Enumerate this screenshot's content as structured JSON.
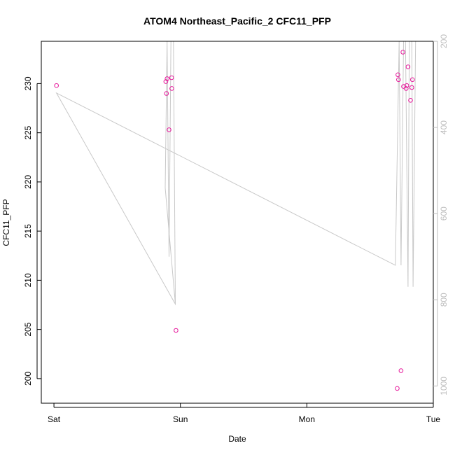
{
  "chart_data": {
    "type": "scatter",
    "title": "ATOM4 Northeast_Pacific_2 CFC11_PFP",
    "xlabel": "Date",
    "ylabel": "CFC11_PFP",
    "x_ticks": [
      "Sat",
      "Sun",
      "Mon",
      "Tue"
    ],
    "x_unit": "days (0 = Sat 00:00)",
    "xlim": [
      -0.1,
      3.0
    ],
    "ylim": [
      197.5,
      234.3
    ],
    "y_ticks": [
      200,
      205,
      210,
      215,
      220,
      225,
      230
    ],
    "y2_ticks": [
      200,
      400,
      600,
      800,
      1000
    ],
    "y2lim": [
      1040,
      200
    ],
    "y2_reversed": true,
    "grid": false,
    "legend": "none",
    "colors": {
      "points": "#e6199b",
      "altitude_line": "#c8c8c8",
      "axis": "#000000",
      "right_axis": "#bdbdbd"
    },
    "series": [
      {
        "kind": "points",
        "axis": "left",
        "points": [
          [
            0.02,
            229.8
          ],
          [
            0.885,
            230.2
          ],
          [
            0.89,
            229.0
          ],
          [
            0.895,
            230.5
          ],
          [
            0.91,
            225.3
          ],
          [
            0.93,
            230.6
          ],
          [
            0.932,
            229.5
          ],
          [
            0.965,
            204.9
          ],
          [
            2.715,
            199.0
          ],
          [
            2.72,
            230.9
          ],
          [
            2.725,
            230.4
          ],
          [
            2.745,
            200.8
          ],
          [
            2.76,
            233.2
          ],
          [
            2.765,
            229.7
          ],
          [
            2.785,
            229.5
          ],
          [
            2.79,
            229.8
          ],
          [
            2.8,
            231.7
          ],
          [
            2.82,
            228.3
          ],
          [
            2.83,
            229.6
          ],
          [
            2.835,
            230.4
          ]
        ]
      },
      {
        "kind": "line",
        "axis": "right",
        "points": [
          [
            0.02,
            320
          ],
          [
            0.96,
            810
          ],
          [
            0.88,
            540
          ],
          [
            0.895,
            200
          ],
          [
            0.91,
            700
          ],
          [
            0.925,
            200
          ],
          [
            0.945,
            200
          ],
          [
            0.96,
            810
          ],
          [
            0.02,
            320
          ],
          [
            2.7,
            720
          ],
          [
            2.73,
            200
          ],
          [
            2.745,
            720
          ],
          [
            2.765,
            200
          ],
          [
            2.78,
            200
          ],
          [
            2.8,
            770
          ],
          [
            2.81,
            200
          ],
          [
            2.83,
            200
          ],
          [
            2.84,
            770
          ],
          [
            2.86,
            200
          ]
        ]
      }
    ]
  }
}
